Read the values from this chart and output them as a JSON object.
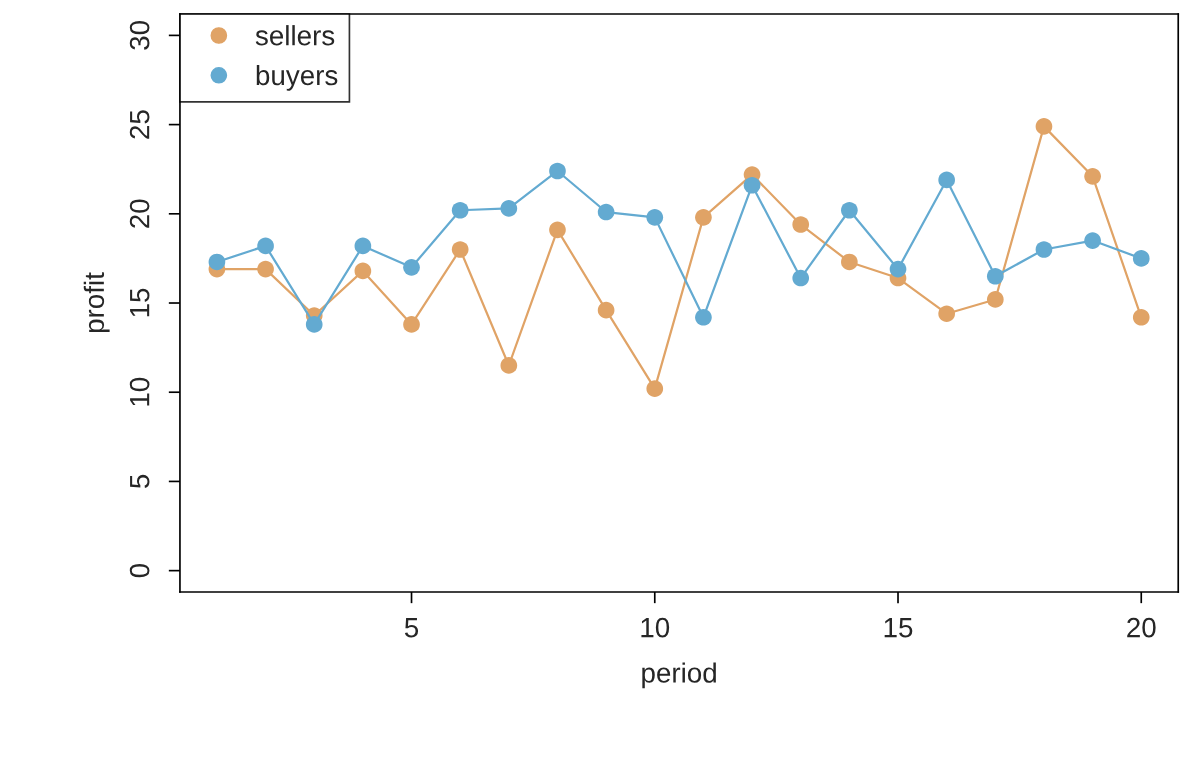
{
  "chart_data": {
    "type": "line",
    "xlabel": "period",
    "ylabel": "profit",
    "x": [
      1,
      2,
      3,
      4,
      5,
      6,
      7,
      8,
      9,
      10,
      11,
      12,
      13,
      14,
      15,
      16,
      17,
      18,
      19,
      20
    ],
    "series": [
      {
        "name": "sellers",
        "color": "#e0a366",
        "values": [
          16.9,
          16.9,
          14.3,
          16.8,
          13.8,
          18.0,
          11.5,
          19.1,
          14.6,
          10.2,
          19.8,
          22.2,
          19.4,
          17.3,
          16.4,
          14.4,
          15.2,
          24.9,
          22.1,
          14.2
        ]
      },
      {
        "name": "buyers",
        "color": "#63aad1",
        "values": [
          17.3,
          18.2,
          13.8,
          18.2,
          17.0,
          20.2,
          20.3,
          22.4,
          20.1,
          19.8,
          14.2,
          21.6,
          16.4,
          20.2,
          16.9,
          21.9,
          16.5,
          18.0,
          18.5,
          17.5
        ]
      }
    ],
    "xlim": [
      0.24,
      20.76
    ],
    "ylim": [
      -1.2,
      31.2
    ],
    "xticks": [
      5,
      10,
      15,
      20
    ],
    "yticks": [
      0,
      5,
      10,
      15,
      20,
      25,
      30
    ],
    "marker": "circle",
    "line_style": "solid",
    "legend": "top left",
    "grid": false
  }
}
